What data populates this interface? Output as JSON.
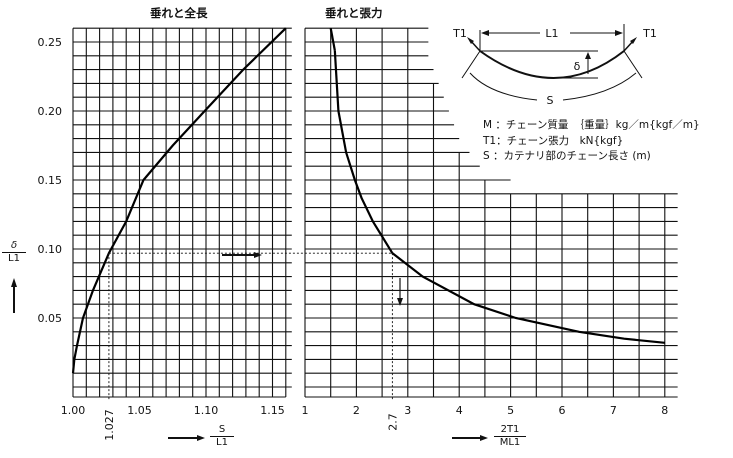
{
  "chart_data": [
    {
      "type": "line",
      "title": "垂れと全長",
      "xlabel": {
        "num": "S",
        "den": "L1"
      },
      "ylabel": {
        "num": "δ",
        "den": "L1"
      },
      "xlim": [
        1.0,
        1.16
      ],
      "ylim": [
        0,
        0.26
      ],
      "grid": true,
      "x_ticks": [
        "1.00",
        "1.05",
        "1.10",
        "1.15"
      ],
      "x_tick_values": [
        1.0,
        1.05,
        1.1,
        1.15
      ],
      "y_ticks": [
        "0.05",
        "0.10",
        "0.15",
        "0.20",
        "0.25"
      ],
      "y_tick_values": [
        0.05,
        0.1,
        0.15,
        0.2,
        0.25
      ],
      "marker_x_label": "1.027",
      "marker": {
        "x": 1.027,
        "y": 0.097
      },
      "x": [
        1.0,
        1.001,
        1.003,
        1.0075,
        1.015,
        1.027,
        1.04,
        1.053,
        1.075,
        1.099,
        1.128,
        1.16
      ],
      "y": [
        0.01,
        0.02,
        0.03,
        0.05,
        0.07,
        0.097,
        0.12,
        0.15,
        0.175,
        0.2,
        0.23,
        0.26
      ]
    },
    {
      "type": "line",
      "title": "垂れと張力",
      "xlabel": {
        "num": "2T1",
        "den": "ML1"
      },
      "xlim": [
        1,
        8.25
      ],
      "ylim": [
        0,
        0.26
      ],
      "grid": true,
      "x_ticks": [
        "1",
        "2",
        "3",
        "4",
        "5",
        "6",
        "7",
        "8"
      ],
      "x_tick_values": [
        1,
        2,
        3,
        4,
        5,
        6,
        7,
        8
      ],
      "marker_x_label": "2.7",
      "marker": {
        "x": 2.7,
        "y": 0.097
      },
      "x": [
        1.58,
        1.65,
        1.8,
        1.97,
        2.1,
        2.32,
        2.7,
        3.29,
        4.29,
        5.1,
        6.33,
        7.21,
        8.0
      ],
      "y": [
        0.244,
        0.2,
        0.17,
        0.15,
        0.137,
        0.12,
        0.097,
        0.08,
        0.06,
        0.05,
        0.04,
        0.035,
        0.032
      ]
    }
  ],
  "diagram": {
    "t_left": "T1",
    "t_right": "T1",
    "span": "L1",
    "sag": "δ",
    "length": "S"
  },
  "legend": [
    "M ：チェーン質量　｛重量｝kg／m{kgf／m}",
    "T1：チェーン張力　kN{kgf}",
    "S ：カテナリ部のチェーン長さ (m)"
  ]
}
